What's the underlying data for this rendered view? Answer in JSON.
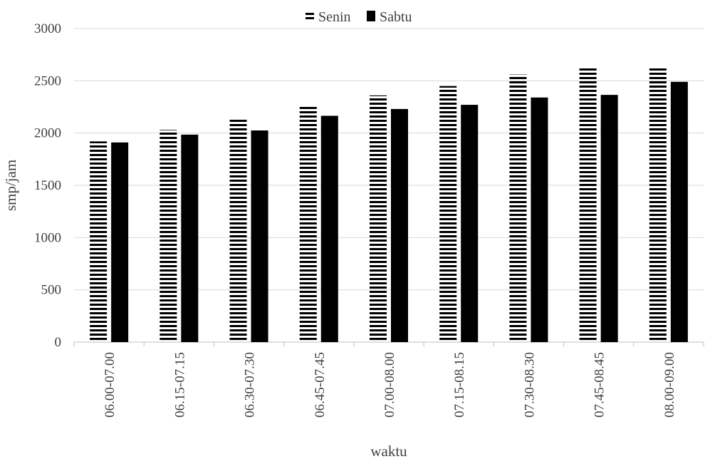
{
  "chart_data": {
    "type": "bar",
    "title": "",
    "xlabel": "waktu",
    "ylabel": "smp/jam",
    "ylim": [
      0,
      3000
    ],
    "yticks": [
      0,
      500,
      1000,
      1500,
      2000,
      2500,
      3000
    ],
    "grid": true,
    "legend_position": "top-center",
    "categories": [
      "06.00-07.00",
      "06.15-07.15",
      "06.30-07.30",
      "06.45-07.45",
      "07.00-08.00",
      "07.15-08.15",
      "07.30-08.30",
      "07.45-08.45",
      "08.00-09.00"
    ],
    "series": [
      {
        "name": "Senin",
        "values": [
          1920,
          2030,
          2140,
          2250,
          2360,
          2450,
          2560,
          2620,
          2630
        ],
        "style": "horizontal-stripes",
        "color": "#000000"
      },
      {
        "name": "Sabtu",
        "values": [
          1910,
          1985,
          2025,
          2165,
          2230,
          2270,
          2340,
          2365,
          2490
        ],
        "style": "solid",
        "color": "#000000"
      }
    ]
  },
  "colors": {
    "gridline": "#d9d9d9",
    "axis": "#bfbfbf",
    "bars": "#000000"
  }
}
